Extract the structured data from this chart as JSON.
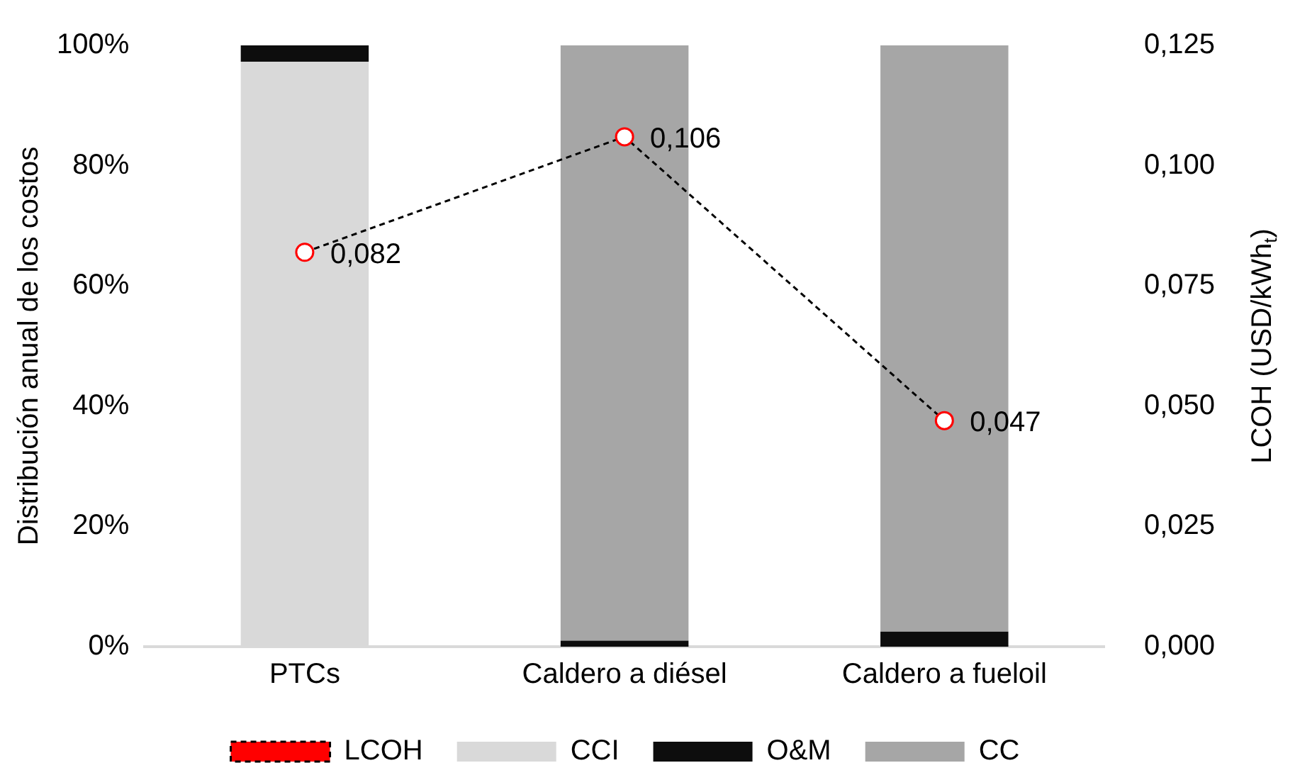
{
  "chart_data": {
    "type": "bar",
    "stacked": true,
    "ylabel": "Distribución anual de los costos",
    "y2label": "LCOH (USD/kWh$_{t}$)",
    "categories": [
      "PTCs",
      "Caldero a diésel",
      "Caldero a fueloil"
    ],
    "series": [
      {
        "name": "CCI",
        "color": "#d9d9d9",
        "values": [
          97.3,
          0,
          0
        ]
      },
      {
        "name": "O&M",
        "color": "#0d0d0d",
        "values": [
          2.7,
          1,
          2.5
        ]
      },
      {
        "name": "CC",
        "color": "#a6a6a6",
        "values": [
          0,
          99,
          97.5
        ]
      },
      {
        "name": "LCOH",
        "type": "line",
        "axis": "y2",
        "color": "#ff0000",
        "line_style": "dashed",
        "marker": "circle",
        "values": [
          0.082,
          0.106,
          0.047
        ],
        "value_labels": [
          "0,082",
          "0,106",
          "0,047"
        ]
      }
    ],
    "ylim": [
      0,
      100
    ],
    "yticks": [
      {
        "value": 0,
        "label": "0%"
      },
      {
        "value": 20,
        "label": "20%"
      },
      {
        "value": 40,
        "label": "40%"
      },
      {
        "value": 60,
        "label": "60%"
      },
      {
        "value": 80,
        "label": "80%"
      },
      {
        "value": 100,
        "label": "100%"
      }
    ],
    "y2lim": [
      0,
      0.125
    ],
    "y2ticks": [
      {
        "value": 0,
        "label": "0,000"
      },
      {
        "value": 0.025,
        "label": "0,025"
      },
      {
        "value": 0.05,
        "label": "0,050"
      },
      {
        "value": 0.075,
        "label": "0,075"
      },
      {
        "value": 0.1,
        "label": "0,100"
      },
      {
        "value": 0.125,
        "label": "0,125"
      }
    ],
    "grid": false,
    "legend": "bottom"
  }
}
